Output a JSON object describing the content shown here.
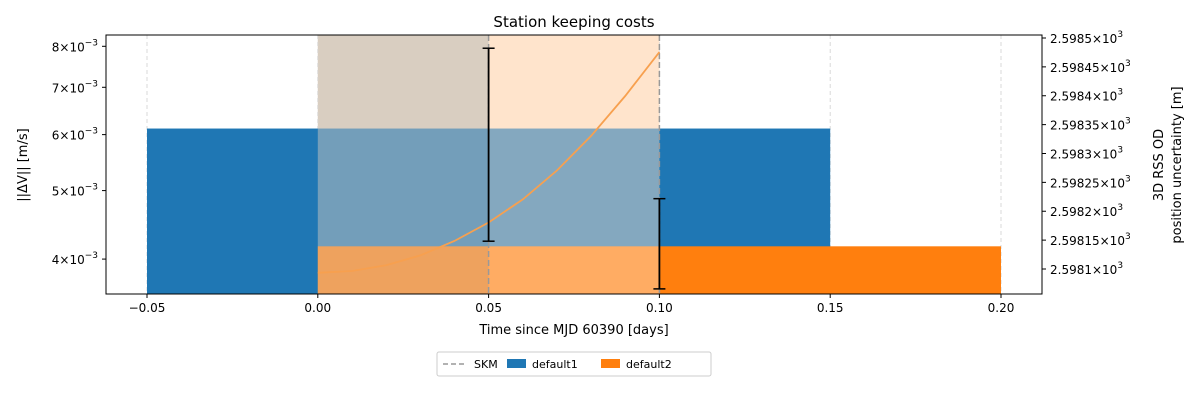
{
  "chart_data": {
    "type": "bar",
    "title": "Station keeping costs",
    "xlabel": "Time since MJD 60390 [days]",
    "ylabel": "||ΔV|| [m/s]",
    "ylabel2_line1": "3D RSS OD",
    "ylabel2_line2": "position uncertainty [m]",
    "xlim": [
      -0.062,
      0.212
    ],
    "ylim": [
      0.00357,
      0.0083
    ],
    "yscale": "log",
    "y2lim": [
      2598.1,
      2598.5
    ],
    "y2scale": "log",
    "grid": "vertical",
    "legend_position": "bottom-center",
    "x_ticks": [
      -0.05,
      0.0,
      0.05,
      0.1,
      0.15,
      0.2
    ],
    "x_tick_labels": [
      "−0.05",
      "0.00",
      "0.05",
      "0.10",
      "0.15",
      "0.20"
    ],
    "y_ticks": [
      0.004,
      0.005,
      0.006,
      0.007,
      0.008
    ],
    "y_tick_mantissas": [
      "4",
      "5",
      "6",
      "7",
      "8"
    ],
    "y_tick_exponent": "−3",
    "y2_ticks": [
      2598.1,
      2598.15,
      2598.2,
      2598.25,
      2598.3,
      2598.35,
      2598.4,
      2598.45,
      2598.5
    ],
    "y2_tick_labels": [
      "2.5981",
      "2.59815",
      "2.5982",
      "2.59825",
      "2.5983",
      "2.59835",
      "2.5984",
      "2.59845",
      "2.5985"
    ],
    "y2_tick_exponent": "3",
    "shaded_regions": [
      {
        "x0": 0.0,
        "x1": 0.05,
        "color": "#d9cec2"
      },
      {
        "x0": 0.05,
        "x1": 0.1,
        "color": "#ffe4cc"
      }
    ],
    "skm_lines": {
      "name": "SKM",
      "x": [
        0.05,
        0.1
      ],
      "color": "#999999"
    },
    "series": [
      {
        "name": "default1",
        "x": 0.05,
        "width": 0.2,
        "value": 0.00612,
        "color": "#1f77b4"
      },
      {
        "name": "default2",
        "x": 0.1,
        "width": 0.2,
        "value": 0.00417,
        "color": "#ff7f0e"
      }
    ],
    "error_bars": [
      {
        "x": 0.05,
        "low": 0.00424,
        "high": 0.00795
      },
      {
        "x": 0.1,
        "low": 0.00363,
        "high": 0.00487
      }
    ],
    "uncertainty_line": {
      "color": "#f7a04f",
      "x": [
        0.0,
        0.01,
        0.02,
        0.03,
        0.04,
        0.05,
        0.06,
        0.07,
        0.08,
        0.09,
        0.1
      ],
      "y": [
        2598.0935,
        2598.0965,
        2598.1065,
        2598.1235,
        2598.1485,
        2598.1805,
        2598.2205,
        2598.2705,
        2598.3305,
        2598.3995,
        2598.4755
      ]
    }
  }
}
